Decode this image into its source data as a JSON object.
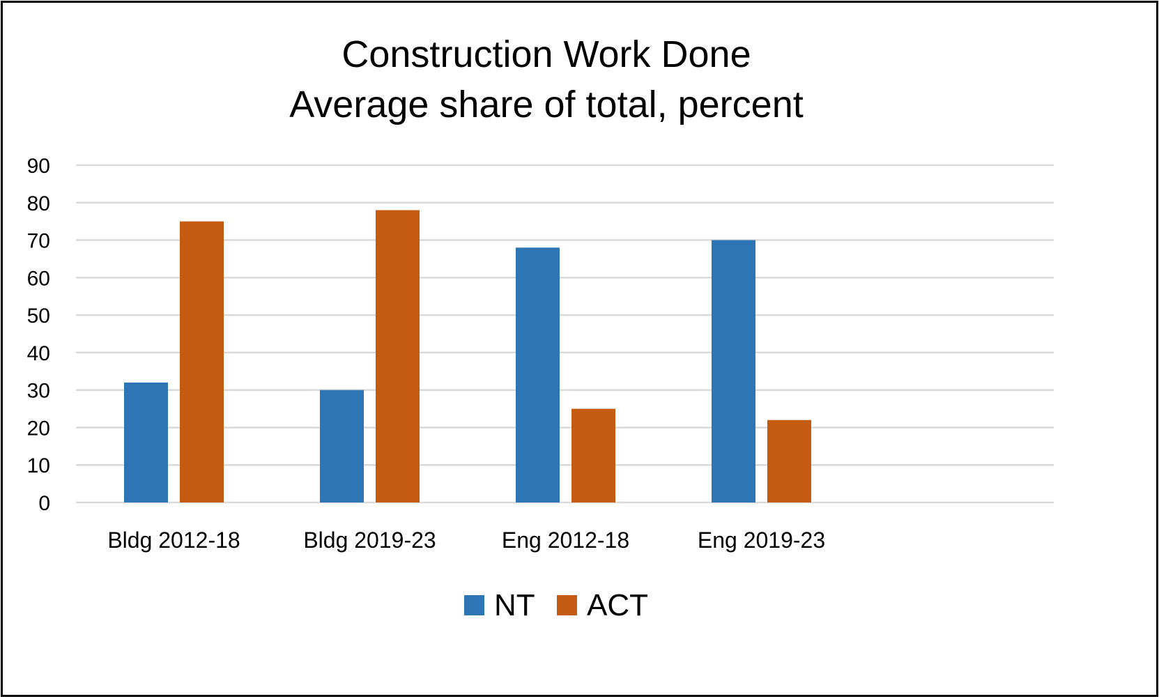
{
  "chart_data": {
    "type": "bar",
    "title": "Construction Work Done",
    "subtitle": "Average share of total, percent",
    "categories": [
      "Bldg 2012-18",
      "Bldg 2019-23",
      "Eng 2012-18",
      "Eng 2019-23"
    ],
    "series": [
      {
        "name": "NT",
        "color": "#2E75B6",
        "values": [
          32,
          30,
          68,
          70
        ]
      },
      {
        "name": "ACT",
        "color": "#C55A11",
        "values": [
          75,
          78,
          25,
          22
        ]
      }
    ],
    "ylim": [
      0,
      90
    ],
    "yticks": [
      "0",
      "10",
      "20",
      "30",
      "40",
      "50",
      "60",
      "70",
      "80",
      "90"
    ],
    "grid": true,
    "gridline_color": "#D9D9D9",
    "legend_position": "bottom"
  }
}
